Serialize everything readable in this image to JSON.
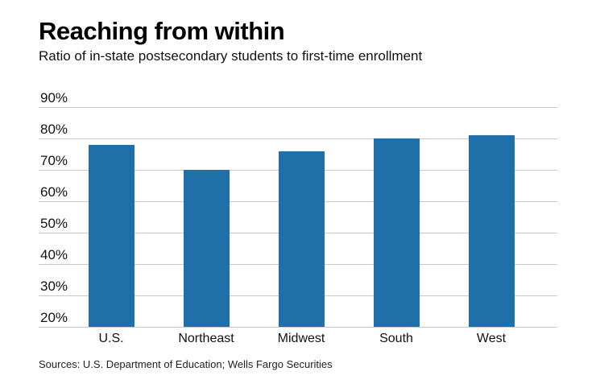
{
  "title": "Reaching from within",
  "subtitle": "Ratio of in-state postsecondary students to first-time enrollment",
  "source": "Sources: U.S. Department of Education; Wells Fargo Securities",
  "chart_data": {
    "type": "bar",
    "title": "Reaching from within",
    "subtitle": "Ratio of in-state postsecondary students to first-time enrollment",
    "categories": [
      "U.S.",
      "Northeast",
      "Midwest",
      "South",
      "West"
    ],
    "values": [
      78,
      70,
      76,
      80,
      81
    ],
    "xlabel": "",
    "ylabel": "",
    "ylim": [
      20,
      90
    ],
    "yticks": [
      90,
      80,
      70,
      60,
      50,
      40,
      30,
      20
    ],
    "ytick_suffix": "%",
    "bar_color": "#1f6fa8",
    "gridline_color": "#c8c8c8",
    "grid": true,
    "legend_position": "none",
    "source_note": "Sources: U.S. Department of Education; Wells Fargo Securities"
  }
}
